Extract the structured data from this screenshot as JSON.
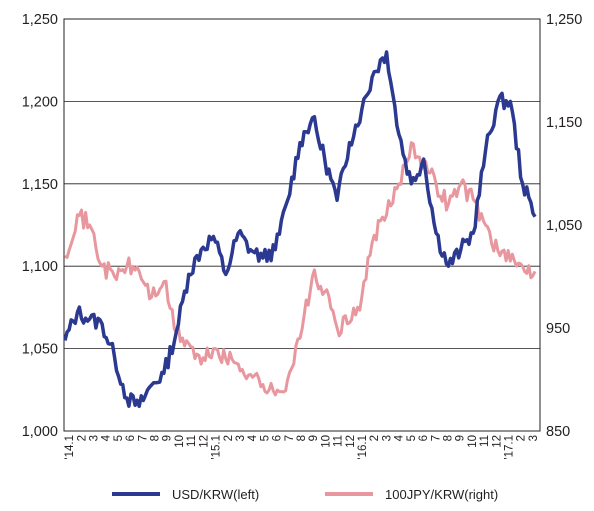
{
  "chart_data": {
    "type": "line",
    "x": [
      "'14.1",
      "2",
      "3",
      "4",
      "5",
      "6",
      "7",
      "8",
      "9",
      "10",
      "11",
      "12",
      "'15.1",
      "2",
      "3",
      "4",
      "5",
      "6",
      "7",
      "8",
      "9",
      "10",
      "11",
      "12",
      "'16.1",
      "2",
      "3",
      "4",
      "5",
      "6",
      "7",
      "8",
      "9",
      "10",
      "11",
      "12",
      "'17.1",
      "2",
      "3"
    ],
    "left_axis": {
      "ylim": [
        1000,
        1250
      ],
      "ticks": [
        "1,000",
        "1,050",
        "1,100",
        "1,150",
        "1,200",
        "1,250"
      ]
    },
    "right_axis": {
      "ylim": [
        850,
        1250
      ],
      "ticks": [
        "850",
        "950",
        "1,050",
        "1,150",
        "1,250"
      ]
    },
    "grid": true,
    "legend": "bottom",
    "series": [
      {
        "name": "USD/KRW(left)",
        "axis": "left",
        "color": "#2b3990",
        "values": [
          1055,
          1072,
          1068,
          1065,
          1045,
          1020,
          1015,
          1028,
          1035,
          1060,
          1095,
          1110,
          1118,
          1095,
          1120,
          1110,
          1105,
          1110,
          1140,
          1175,
          1190,
          1165,
          1140,
          1175,
          1195,
          1218,
          1230,
          1180,
          1150,
          1165,
          1120,
          1100,
          1110,
          1120,
          1170,
          1200,
          1200,
          1150,
          1130
        ]
      },
      {
        "name": "100JPY/KRW(right)",
        "axis": "right",
        "color": "#e8979f",
        "values": [
          1020,
          1060,
          1050,
          1010,
          1000,
          1010,
          1005,
          980,
          995,
          945,
          935,
          915,
          930,
          920,
          915,
          905,
          895,
          885,
          900,
          940,
          1000,
          985,
          950,
          955,
          980,
          1040,
          1060,
          1090,
          1130,
          1110,
          1090,
          1070,
          1090,
          1075,
          1050,
          1025,
          1015,
          1010,
          1005
        ]
      }
    ]
  }
}
